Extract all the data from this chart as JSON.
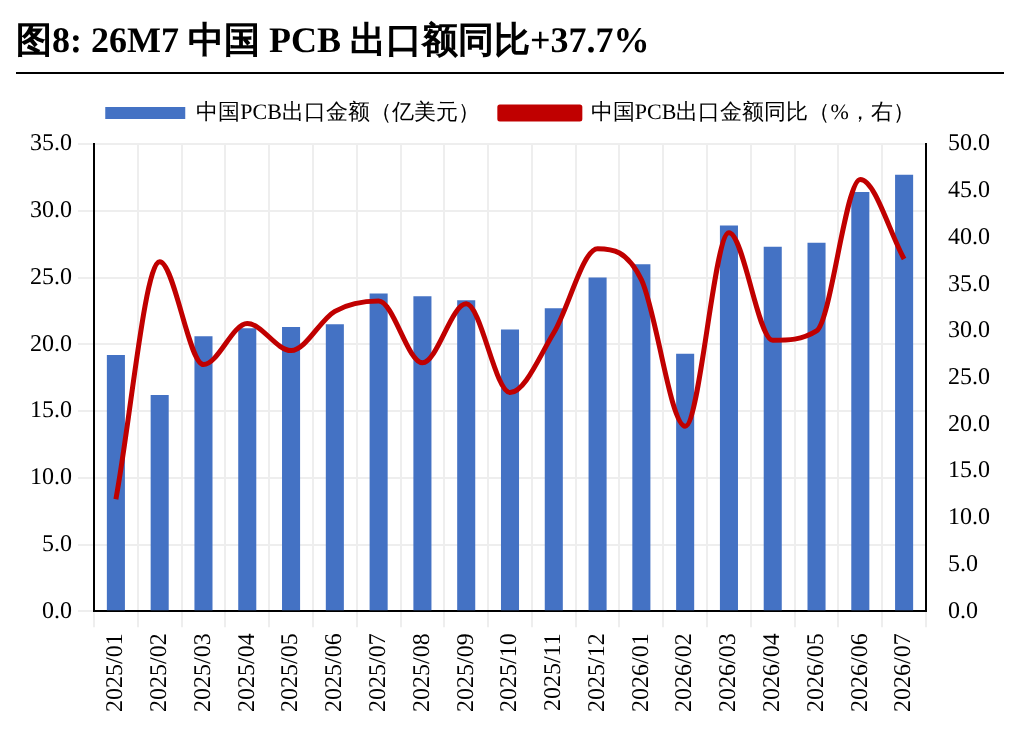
{
  "chart_data": {
    "type": "bar",
    "title": "图8:  26M7 中国 PCB 出口额同比+37.7%",
    "categories": [
      "2025/01",
      "2025/02",
      "2025/03",
      "2025/04",
      "2025/05",
      "2025/06",
      "2025/07",
      "2025/08",
      "2025/09",
      "2025/10",
      "2025/11",
      "2025/12",
      "2026/01",
      "2026/02",
      "2026/03",
      "2026/04",
      "2026/05",
      "2026/06",
      "2026/07"
    ],
    "series": [
      {
        "name": "中国PCB出口金额（亿美元）",
        "color": "#4472c4",
        "values": [
          19.2,
          16.2,
          20.6,
          21.2,
          21.3,
          21.5,
          23.8,
          23.6,
          23.3,
          21.1,
          22.7,
          25.0,
          26.0,
          19.3,
          28.9,
          27.3,
          27.6,
          31.4,
          32.7
        ]
      },
      {
        "name": "中国PCB出口金额同比（%，右）",
        "type": "line",
        "axis": "y2",
        "color": "#c00000",
        "values": [
          12.0,
          37.4,
          26.4,
          30.8,
          27.9,
          32.1,
          33.2,
          26.6,
          32.9,
          23.4,
          29.8,
          38.8,
          35.5,
          19.8,
          40.5,
          29.0,
          30.0,
          46.2,
          37.7
        ]
      }
    ],
    "ylim": [
      0,
      35
    ],
    "yticks": [
      {
        "value": 0,
        "label": "0.0"
      },
      {
        "value": 5,
        "label": "5.0"
      },
      {
        "value": 10,
        "label": "10.0"
      },
      {
        "value": 15,
        "label": "15.0"
      },
      {
        "value": 20,
        "label": "20.0"
      },
      {
        "value": 25,
        "label": "25.0"
      },
      {
        "value": 30,
        "label": "30.0"
      },
      {
        "value": 35,
        "label": "35.0"
      }
    ],
    "y2lim": [
      0,
      50
    ],
    "y2ticks": [
      {
        "value": 0,
        "label": "0.0"
      },
      {
        "value": 5,
        "label": "5.0"
      },
      {
        "value": 10,
        "label": "10.0"
      },
      {
        "value": 15,
        "label": "15.0"
      },
      {
        "value": 20,
        "label": "20.0"
      },
      {
        "value": 25,
        "label": "25.0"
      },
      {
        "value": 30,
        "label": "30.0"
      },
      {
        "value": 35,
        "label": "35.0"
      },
      {
        "value": 40,
        "label": "40.0"
      },
      {
        "value": 45,
        "label": "45.0"
      },
      {
        "value": 50,
        "label": "50.0"
      }
    ],
    "grid": true,
    "legend": "top",
    "marker": "none",
    "line_style": "solid"
  }
}
